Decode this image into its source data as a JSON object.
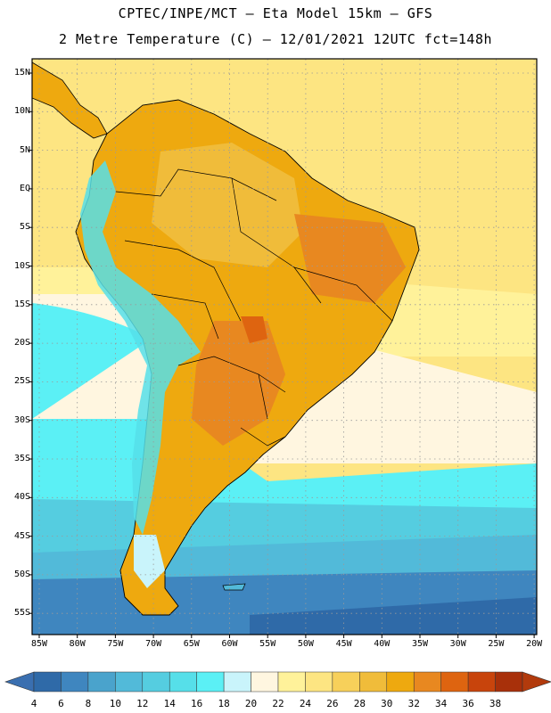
{
  "header": {
    "line1": "CPTEC/INPE/MCT –  Eta Model 15km – GFS",
    "line2": "2 Metre Temperature (C) – 12/01/2021 12UTC fct=148h"
  },
  "axes": {
    "lat_labels": [
      "15N",
      "10N",
      "5N",
      "EQ",
      "5S",
      "10S",
      "15S",
      "20S",
      "25S",
      "30S",
      "35S",
      "40S",
      "45S",
      "50S",
      "55S"
    ],
    "lon_labels": [
      "85W",
      "80W",
      "75W",
      "70W",
      "65W",
      "60W",
      "55W",
      "50W",
      "45W",
      "40W",
      "35W",
      "30W",
      "25W",
      "20W"
    ]
  },
  "colorbar": {
    "ticks": [
      "4",
      "6",
      "8",
      "10",
      "12",
      "14",
      "16",
      "18",
      "20",
      "22",
      "24",
      "26",
      "28",
      "30",
      "32",
      "34",
      "36",
      "38"
    ],
    "colors": [
      "#2f6aa8",
      "#3f86bf",
      "#4aa3cc",
      "#52bad9",
      "#55cde0",
      "#56dfe9",
      "#5bf0f5",
      "#c9f4fb",
      "#fff6e0",
      "#fff29a",
      "#fde582",
      "#f7d05a",
      "#f0bc3a",
      "#eea90f",
      "#e88820",
      "#de6410",
      "#c8440c",
      "#a8300a"
    ],
    "left_arrow_color": "#3a6fb0",
    "right_arrow_color": "#b23a0c"
  },
  "palette": {
    "ocean_north": "#fde582",
    "ocean_mid": "#fff6e0",
    "ocean_cool": "#5bf0f5",
    "ocean_cold": "#52bad9",
    "ocean_colder": "#3f86bf",
    "ocean_coldest": "#2f6aa8",
    "land_hot": "#eea90f",
    "land_warm": "#f0bc3a",
    "andes": "#56dfe9",
    "grid": "#9a9a9a"
  }
}
